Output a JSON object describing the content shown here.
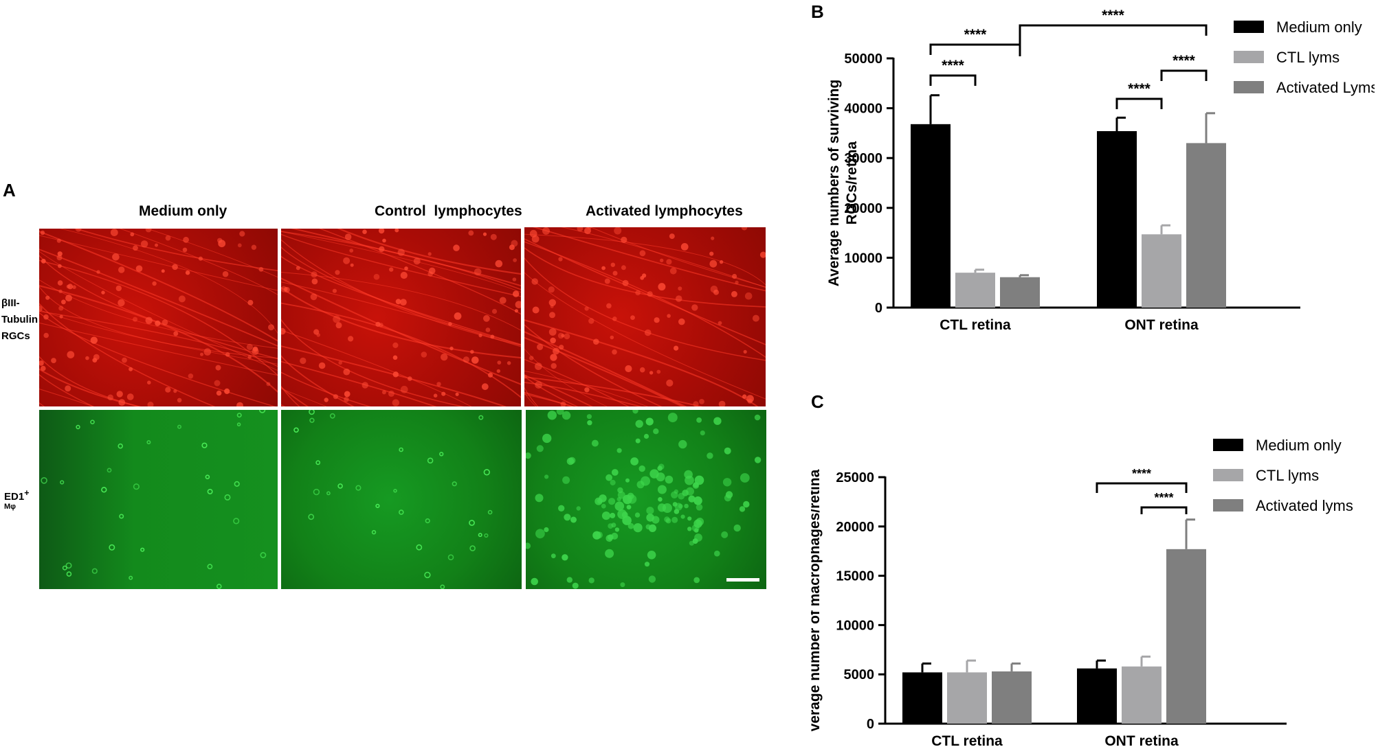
{
  "panel_a": {
    "letter": "A",
    "columns": [
      "Medium only",
      "Control  lymphocytes",
      "Activated lymphocytes"
    ],
    "row1_label_lines": [
      "βIII-",
      "Tubulin",
      "RGCs"
    ],
    "row2_label_main": "ED1",
    "row2_label_sup": "+",
    "row2_label_sub": "Mφ"
  },
  "chart_data": [
    {
      "panel": "B",
      "type": "bar",
      "title": "",
      "xlabel": "",
      "ylabel": "Average numbers of surviving RGCs/retina",
      "categories": [
        "CTL retina",
        "ONT retina"
      ],
      "ylim": [
        0,
        50000
      ],
      "yticks": [
        "0",
        "10000",
        "20000",
        "30000",
        "40000",
        "50000"
      ],
      "legend_position": "top-right",
      "series": [
        {
          "name": "Medium only",
          "color": "#000000",
          "values": [
            36800,
            35400
          ],
          "errors": [
            5800,
            2700
          ]
        },
        {
          "name": "CTL lyms",
          "color": "#a6a6a8",
          "values": [
            7000,
            14700
          ],
          "errors": [
            600,
            1800
          ]
        },
        {
          "name": "Activated Lyms",
          "color": "#7f7f7f",
          "values": [
            6100,
            33000
          ],
          "errors": [
            400,
            6000
          ]
        }
      ],
      "significance": [
        {
          "label": "****",
          "from": [
            0,
            0
          ],
          "to": [
            0,
            1
          ]
        },
        {
          "label": "****",
          "from": [
            0,
            0
          ],
          "to": [
            0,
            2
          ]
        },
        {
          "label": "****",
          "from": [
            0,
            2
          ],
          "to": [
            1,
            2
          ]
        },
        {
          "label": "****",
          "from": [
            1,
            0
          ],
          "to": [
            1,
            1
          ]
        },
        {
          "label": "****",
          "from": [
            1,
            1
          ],
          "to": [
            1,
            2
          ]
        }
      ]
    },
    {
      "panel": "C",
      "type": "bar",
      "title": "",
      "xlabel": "",
      "ylabel": "verage number of macrophages/retina",
      "categories": [
        "CTL retina",
        "ONT retina"
      ],
      "ylim": [
        0,
        25000
      ],
      "yticks": [
        "0",
        "5000",
        "10000",
        "15000",
        "20000",
        "25000"
      ],
      "legend_position": "top-right",
      "series": [
        {
          "name": "Medium only",
          "color": "#000000",
          "values": [
            5200,
            5600
          ],
          "errors": [
            900,
            800
          ]
        },
        {
          "name": "CTL lyms",
          "color": "#a6a6a8",
          "values": [
            5200,
            5800
          ],
          "errors": [
            1200,
            1000
          ]
        },
        {
          "name": "Activated lyms",
          "color": "#7f7f7f",
          "values": [
            5300,
            17700
          ],
          "errors": [
            800,
            3000
          ]
        }
      ],
      "significance": [
        {
          "label": "****",
          "from": [
            1,
            0
          ],
          "to": [
            1,
            2
          ]
        },
        {
          "label": "****",
          "from": [
            1,
            1
          ],
          "to": [
            1,
            2
          ]
        }
      ]
    }
  ]
}
